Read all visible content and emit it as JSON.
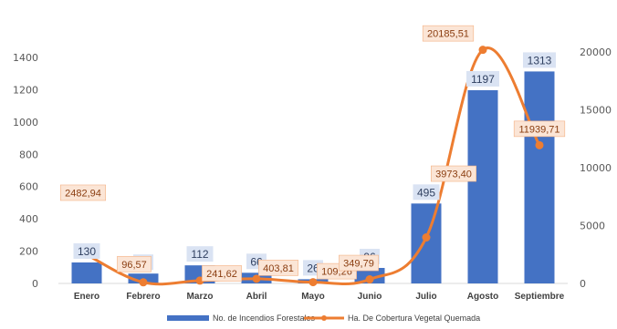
{
  "chart_data": {
    "type": "bar",
    "categories": [
      "Enero",
      "Febrero",
      "Marzo",
      "Abril",
      "Mayo",
      "Junio",
      "Julio",
      "Agosto",
      "Septiembre"
    ],
    "series": [
      {
        "name": "No. de Incendios Forestales",
        "type": "bar",
        "axis": "left",
        "color": "#4472c4",
        "values": [
          130,
          61,
          112,
          66,
          26,
          96,
          495,
          1197,
          1313
        ],
        "labels": [
          "130",
          "61",
          "112",
          "66",
          "26",
          "96",
          "495",
          "1197",
          "1313"
        ]
      },
      {
        "name": "Ha. De Cobertura Vegetal Quemada",
        "type": "line",
        "axis": "right",
        "color": "#ed7d31",
        "values": [
          2482.94,
          96.57,
          241.62,
          403.81,
          109.26,
          349.79,
          3973.4,
          20185.51,
          11939.71
        ],
        "labels": [
          "2482,94",
          "96,57",
          "241,62",
          "403,81",
          "109,26",
          "349,79",
          "3973,40",
          "20185,51",
          "11939,71"
        ]
      }
    ],
    "y_left": {
      "ylim": [
        0,
        1400
      ],
      "ticks": [
        "0",
        "200",
        "400",
        "600",
        "800",
        "1000",
        "1200",
        "1400"
      ]
    },
    "y_right": {
      "ylim": [
        0,
        20000
      ],
      "ticks": [
        "0",
        "5000",
        "10000",
        "15000",
        "20000"
      ]
    },
    "grid": false,
    "legend_position": "bottom",
    "colors": {
      "bar": "#4472c4",
      "line": "#ed7d31",
      "bar_label_bg": "#dae3f3",
      "line_label_bg": "#fbe5d6",
      "axis": "#bfbfbf"
    }
  }
}
